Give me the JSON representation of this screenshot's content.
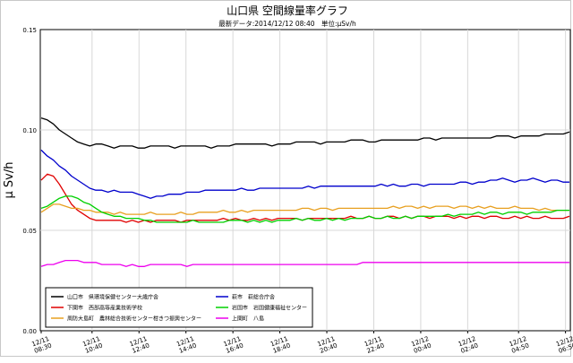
{
  "chart_data": {
    "type": "line",
    "title": "山口県 空間線量率グラフ",
    "subtitle": "最新データ:2014/12/12 08:40　単位:μSv/h",
    "ylabel": "μ Sv/h",
    "xlabel": "",
    "ylim": [
      0,
      0.15
    ],
    "yticks": [
      "0.00",
      "0.05",
      "0.10",
      "0.15"
    ],
    "grid": true,
    "legend_position": "bottom-left",
    "x_ticks": [
      {
        "date": "12/11",
        "time": "08:30",
        "index": 0
      },
      {
        "date": "12/11",
        "time": "10:40",
        "index": 13
      },
      {
        "date": "12/11",
        "time": "12:40",
        "index": 25
      },
      {
        "date": "12/11",
        "time": "14:40",
        "index": 37
      },
      {
        "date": "12/11",
        "time": "16:40",
        "index": 49
      },
      {
        "date": "12/11",
        "time": "18:40",
        "index": 61
      },
      {
        "date": "12/11",
        "time": "20:40",
        "index": 73
      },
      {
        "date": "12/11",
        "time": "22:40",
        "index": 85
      },
      {
        "date": "12/12",
        "time": "00:40",
        "index": 97
      },
      {
        "date": "12/12",
        "time": "02:40",
        "index": 109
      },
      {
        "date": "12/12",
        "time": "04:50",
        "index": 122
      },
      {
        "date": "12/12",
        "time": "06:50",
        "index": 134
      }
    ],
    "series": [
      {
        "name": "山口市　県環境保健センター大歳庁舎",
        "color": "#000000",
        "values": [
          0.106,
          0.105,
          0.103,
          0.1,
          0.098,
          0.096,
          0.094,
          0.093,
          0.092,
          0.093,
          0.093,
          0.092,
          0.091,
          0.092,
          0.092,
          0.092,
          0.091,
          0.091,
          0.092,
          0.092,
          0.092,
          0.092,
          0.091,
          0.092,
          0.092,
          0.092,
          0.092,
          0.092,
          0.091,
          0.092,
          0.092,
          0.092,
          0.093,
          0.093,
          0.093,
          0.093,
          0.093,
          0.093,
          0.092,
          0.093,
          0.093,
          0.093,
          0.094,
          0.094,
          0.094,
          0.094,
          0.093,
          0.094,
          0.094,
          0.094,
          0.094,
          0.095,
          0.095,
          0.095,
          0.094,
          0.094,
          0.095,
          0.095,
          0.095,
          0.095,
          0.095,
          0.095,
          0.095,
          0.096,
          0.096,
          0.095,
          0.096,
          0.096,
          0.096,
          0.096,
          0.096,
          0.096,
          0.096,
          0.096,
          0.096,
          0.097,
          0.097,
          0.097,
          0.096,
          0.097,
          0.097,
          0.097,
          0.097,
          0.098,
          0.098,
          0.098,
          0.098,
          0.099
        ]
      },
      {
        "name": "下関市　西部高等産業技術学校",
        "color": "#e00000",
        "values": [
          0.075,
          0.078,
          0.077,
          0.073,
          0.068,
          0.063,
          0.06,
          0.058,
          0.056,
          0.055,
          0.055,
          0.055,
          0.055,
          0.055,
          0.054,
          0.055,
          0.054,
          0.055,
          0.054,
          0.055,
          0.055,
          0.055,
          0.055,
          0.054,
          0.055,
          0.055,
          0.055,
          0.055,
          0.055,
          0.055,
          0.056,
          0.055,
          0.056,
          0.055,
          0.055,
          0.056,
          0.055,
          0.056,
          0.055,
          0.056,
          0.056,
          0.056,
          0.056,
          0.055,
          0.056,
          0.056,
          0.056,
          0.056,
          0.056,
          0.056,
          0.056,
          0.057,
          0.056,
          0.056,
          0.057,
          0.056,
          0.056,
          0.057,
          0.057,
          0.056,
          0.057,
          0.056,
          0.057,
          0.057,
          0.056,
          0.057,
          0.057,
          0.057,
          0.056,
          0.057,
          0.056,
          0.057,
          0.057,
          0.056,
          0.057,
          0.057,
          0.056,
          0.056,
          0.057,
          0.056,
          0.057,
          0.056,
          0.056,
          0.057,
          0.056,
          0.056,
          0.056,
          0.057
        ]
      },
      {
        "name": "周防大島町　農林総合技術センター柑きつ振興センター",
        "color": "#e8a020",
        "values": [
          0.059,
          0.061,
          0.063,
          0.063,
          0.062,
          0.061,
          0.061,
          0.06,
          0.06,
          0.059,
          0.059,
          0.059,
          0.058,
          0.059,
          0.058,
          0.058,
          0.058,
          0.058,
          0.059,
          0.058,
          0.058,
          0.058,
          0.058,
          0.059,
          0.058,
          0.058,
          0.059,
          0.059,
          0.059,
          0.059,
          0.06,
          0.059,
          0.059,
          0.06,
          0.059,
          0.06,
          0.06,
          0.06,
          0.06,
          0.06,
          0.06,
          0.06,
          0.06,
          0.061,
          0.061,
          0.06,
          0.061,
          0.061,
          0.06,
          0.061,
          0.061,
          0.061,
          0.061,
          0.061,
          0.061,
          0.061,
          0.061,
          0.061,
          0.062,
          0.061,
          0.062,
          0.062,
          0.061,
          0.062,
          0.061,
          0.062,
          0.062,
          0.062,
          0.061,
          0.062,
          0.062,
          0.061,
          0.062,
          0.061,
          0.062,
          0.061,
          0.061,
          0.061,
          0.062,
          0.061,
          0.061,
          0.061,
          0.06,
          0.061,
          0.06,
          0.06,
          0.06,
          0.06
        ]
      },
      {
        "name": "萩市　萩総合庁舎",
        "color": "#0000cc",
        "values": [
          0.09,
          0.087,
          0.085,
          0.082,
          0.08,
          0.077,
          0.075,
          0.073,
          0.071,
          0.07,
          0.07,
          0.069,
          0.07,
          0.069,
          0.069,
          0.069,
          0.068,
          0.067,
          0.066,
          0.067,
          0.067,
          0.068,
          0.068,
          0.068,
          0.069,
          0.069,
          0.069,
          0.07,
          0.07,
          0.07,
          0.07,
          0.07,
          0.07,
          0.071,
          0.07,
          0.07,
          0.071,
          0.071,
          0.071,
          0.071,
          0.071,
          0.071,
          0.071,
          0.071,
          0.072,
          0.071,
          0.072,
          0.072,
          0.072,
          0.072,
          0.072,
          0.072,
          0.072,
          0.072,
          0.072,
          0.072,
          0.073,
          0.072,
          0.073,
          0.072,
          0.072,
          0.073,
          0.073,
          0.072,
          0.073,
          0.073,
          0.073,
          0.073,
          0.073,
          0.074,
          0.074,
          0.073,
          0.074,
          0.074,
          0.075,
          0.075,
          0.076,
          0.075,
          0.074,
          0.075,
          0.075,
          0.076,
          0.075,
          0.074,
          0.075,
          0.075,
          0.074,
          0.074
        ]
      },
      {
        "name": "岩国市　岩国健康福祉センター",
        "color": "#00d000",
        "values": [
          0.061,
          0.062,
          0.064,
          0.066,
          0.067,
          0.067,
          0.066,
          0.064,
          0.063,
          0.061,
          0.059,
          0.058,
          0.057,
          0.057,
          0.056,
          0.056,
          0.056,
          0.055,
          0.055,
          0.054,
          0.054,
          0.054,
          0.054,
          0.054,
          0.054,
          0.055,
          0.054,
          0.054,
          0.054,
          0.054,
          0.054,
          0.055,
          0.055,
          0.055,
          0.054,
          0.055,
          0.054,
          0.055,
          0.054,
          0.055,
          0.055,
          0.055,
          0.056,
          0.055,
          0.056,
          0.055,
          0.055,
          0.056,
          0.055,
          0.056,
          0.055,
          0.056,
          0.056,
          0.056,
          0.057,
          0.056,
          0.056,
          0.057,
          0.056,
          0.056,
          0.057,
          0.056,
          0.057,
          0.057,
          0.057,
          0.057,
          0.057,
          0.058,
          0.057,
          0.058,
          0.058,
          0.058,
          0.059,
          0.058,
          0.059,
          0.059,
          0.058,
          0.059,
          0.059,
          0.059,
          0.058,
          0.059,
          0.059,
          0.059,
          0.059,
          0.06,
          0.06,
          0.06
        ]
      },
      {
        "name": "上関町　八島",
        "color": "#ee00ee",
        "values": [
          0.032,
          0.033,
          0.033,
          0.034,
          0.035,
          0.035,
          0.035,
          0.034,
          0.034,
          0.034,
          0.033,
          0.033,
          0.033,
          0.033,
          0.032,
          0.033,
          0.032,
          0.032,
          0.033,
          0.033,
          0.033,
          0.033,
          0.033,
          0.033,
          0.032,
          0.033,
          0.033,
          0.033,
          0.033,
          0.033,
          0.033,
          0.033,
          0.033,
          0.033,
          0.033,
          0.033,
          0.033,
          0.033,
          0.033,
          0.033,
          0.033,
          0.033,
          0.033,
          0.033,
          0.033,
          0.033,
          0.033,
          0.033,
          0.033,
          0.033,
          0.033,
          0.033,
          0.033,
          0.034,
          0.034,
          0.034,
          0.034,
          0.034,
          0.034,
          0.034,
          0.034,
          0.034,
          0.034,
          0.034,
          0.034,
          0.034,
          0.034,
          0.034,
          0.034,
          0.034,
          0.034,
          0.034,
          0.034,
          0.034,
          0.034,
          0.034,
          0.034,
          0.034,
          0.034,
          0.034,
          0.034,
          0.034,
          0.034,
          0.034,
          0.034,
          0.034,
          0.034,
          0.034
        ]
      }
    ]
  }
}
